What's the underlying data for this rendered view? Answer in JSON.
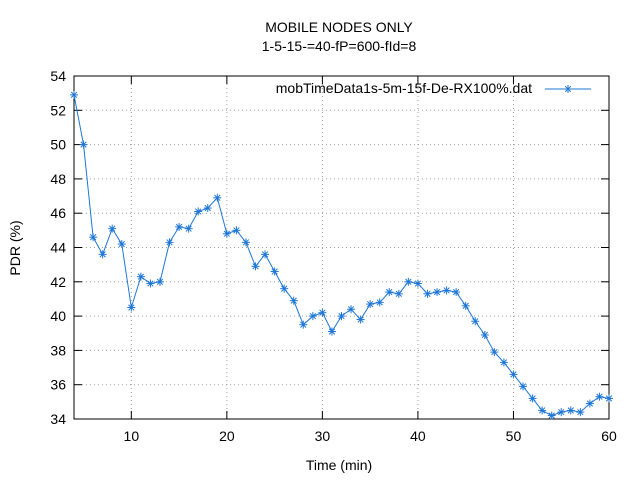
{
  "chart_data": {
    "type": "line",
    "title": "MOBILE NODES ONLY",
    "subtitle": "1-5-15-=40-fP=600-fId=8",
    "xlabel": "Time (min)",
    "ylabel": "PDR (%)",
    "xlim": [
      4,
      60
    ],
    "ylim": [
      34,
      54
    ],
    "xticks": [
      10,
      20,
      30,
      40,
      50,
      60
    ],
    "yticks": [
      34,
      36,
      38,
      40,
      42,
      44,
      46,
      48,
      50,
      52,
      54
    ],
    "grid": true,
    "legend_position": "top-right",
    "series": [
      {
        "name": "mobTimeData1s-5m-15f-De-RX100%.dat",
        "color": "#1f77d4",
        "marker": "asterisk",
        "x": [
          4,
          5,
          6,
          7,
          8,
          9,
          10,
          11,
          12,
          13,
          14,
          15,
          16,
          17,
          18,
          19,
          20,
          21,
          22,
          23,
          24,
          25,
          26,
          27,
          28,
          29,
          30,
          31,
          32,
          33,
          34,
          35,
          36,
          37,
          38,
          39,
          40,
          41,
          42,
          43,
          44,
          45,
          46,
          47,
          48,
          49,
          50,
          51,
          52,
          53,
          54,
          55,
          56,
          57,
          58,
          59,
          60
        ],
        "y": [
          52.9,
          50.0,
          44.6,
          43.6,
          45.1,
          44.2,
          40.5,
          42.3,
          41.9,
          42.0,
          44.3,
          45.2,
          45.1,
          46.1,
          46.3,
          46.9,
          44.8,
          45.0,
          44.3,
          42.9,
          43.6,
          42.6,
          41.6,
          40.9,
          39.5,
          40.0,
          40.2,
          39.1,
          40.0,
          40.4,
          39.8,
          40.7,
          40.8,
          41.4,
          41.3,
          42.0,
          41.9,
          41.3,
          41.4,
          41.5,
          41.4,
          40.6,
          39.7,
          38.9,
          37.9,
          37.3,
          36.6,
          35.9,
          35.2,
          34.5,
          34.2,
          34.4,
          34.5,
          34.4,
          34.9,
          35.3,
          35.2
        ]
      }
    ]
  }
}
